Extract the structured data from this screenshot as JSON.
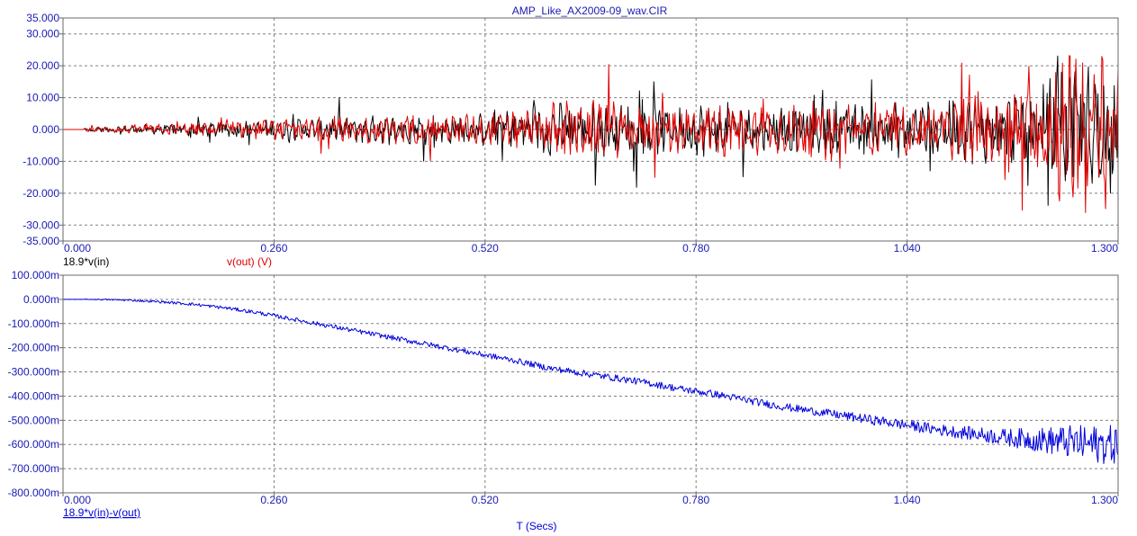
{
  "title": "AMP_Like_AX2009-09_wav.CIR",
  "xlabel": "T (Secs)",
  "colors": {
    "frame": "#6a6a6a",
    "grid": "#808080",
    "text": "#1a1a1a",
    "title": "#1a1ab4",
    "black_trace": "#000000",
    "red_trace": "#e00000",
    "blue_trace": "#0000dc"
  },
  "chart_data": [
    {
      "type": "line",
      "id": "top",
      "xlim": [
        0,
        1.3
      ],
      "ylim": [
        -35,
        35
      ],
      "x_ticks": [
        0,
        0.26,
        0.52,
        0.78,
        1.04,
        1.3
      ],
      "x_tick_labels": [
        "0.000",
        "0.260",
        "0.520",
        "0.780",
        "1.040",
        "1.300"
      ],
      "y_ticks": [
        35,
        30,
        20,
        10,
        0,
        -10,
        -20,
        -30,
        -35
      ],
      "y_tick_labels": [
        "35.000",
        "30.000",
        "20.000",
        "10.000",
        "0.000",
        "-10.000",
        "-20.000",
        "-30.000",
        "-35.000"
      ],
      "grid": true,
      "series": [
        {
          "name": "18.9*v(in)",
          "color": "#000000",
          "x": [
            0,
            0.04,
            0.08,
            0.12,
            0.16,
            0.2,
            0.24,
            0.28,
            0.32,
            0.36,
            0.4,
            0.44,
            0.48,
            0.52,
            0.56,
            0.6,
            0.64,
            0.68,
            0.72,
            0.76,
            0.8,
            0.84,
            0.88,
            0.92,
            0.96,
            1.0,
            1.04,
            1.08,
            1.12,
            1.16,
            1.2,
            1.24,
            1.27,
            1.3
          ],
          "amplitude": [
            0,
            1,
            1.5,
            2,
            2.5,
            3,
            3.5,
            4,
            4.5,
            5,
            5,
            5.5,
            5.5,
            6,
            7,
            10,
            10,
            10,
            9,
            9,
            10,
            9,
            9,
            9.5,
            9.5,
            10,
            10,
            10,
            12,
            12,
            18,
            24,
            26,
            22
          ]
        },
        {
          "name": "v(out)",
          "unit": "(V)",
          "color": "#e00000",
          "x": [
            0,
            0.04,
            0.08,
            0.12,
            0.16,
            0.2,
            0.24,
            0.28,
            0.32,
            0.36,
            0.4,
            0.44,
            0.48,
            0.52,
            0.56,
            0.6,
            0.64,
            0.68,
            0.72,
            0.76,
            0.8,
            0.84,
            0.88,
            0.92,
            0.96,
            1.0,
            1.04,
            1.08,
            1.12,
            1.16,
            1.2,
            1.24,
            1.27,
            1.3
          ],
          "amplitude": [
            0,
            1,
            1.5,
            2,
            2.5,
            3,
            3.5,
            4,
            4.5,
            5,
            5,
            5.5,
            5.5,
            6,
            7,
            10,
            11,
            10,
            9,
            9,
            10,
            9,
            9,
            9.5,
            9.5,
            10,
            11,
            10,
            12,
            13,
            20,
            30,
            31,
            25
          ]
        }
      ]
    },
    {
      "type": "line",
      "id": "bottom",
      "xlim": [
        0,
        1.3
      ],
      "ylim": [
        -800,
        100
      ],
      "y_unit": "m",
      "xlabel": "T (Secs)",
      "x_ticks": [
        0,
        0.26,
        0.52,
        0.78,
        1.04,
        1.3
      ],
      "x_tick_labels": [
        "0.000",
        "0.260",
        "0.520",
        "0.780",
        "1.040",
        "1.300"
      ],
      "y_ticks": [
        100,
        0,
        -100,
        -200,
        -300,
        -400,
        -500,
        -600,
        -700,
        -800
      ],
      "y_tick_labels": [
        "100.000m",
        "0.000m",
        "-100.000m",
        "-200.000m",
        "-300.000m",
        "-400.000m",
        "-500.000m",
        "-600.000m",
        "-700.000m",
        "-800.000m"
      ],
      "grid": true,
      "series": [
        {
          "name": "18.9*v(in)-v(out)",
          "color": "#0000dc",
          "x": [
            0,
            0.04,
            0.08,
            0.12,
            0.16,
            0.2,
            0.24,
            0.28,
            0.32,
            0.36,
            0.4,
            0.44,
            0.48,
            0.52,
            0.56,
            0.6,
            0.64,
            0.68,
            0.72,
            0.76,
            0.8,
            0.84,
            0.88,
            0.92,
            0.96,
            1.0,
            1.04,
            1.08,
            1.12,
            1.16,
            1.2,
            1.24,
            1.27,
            1.3
          ],
          "y": [
            0,
            0,
            -3,
            -10,
            -20,
            -35,
            -55,
            -80,
            -105,
            -130,
            -155,
            -180,
            -205,
            -230,
            -255,
            -285,
            -305,
            -325,
            -345,
            -370,
            -390,
            -415,
            -440,
            -460,
            -480,
            -500,
            -520,
            -540,
            -555,
            -570,
            -580,
            -590,
            -600,
            -600
          ],
          "noise": [
            0,
            2,
            4,
            5,
            6,
            7,
            8,
            8,
            9,
            10,
            10,
            11,
            11,
            12,
            12,
            13,
            14,
            14,
            14,
            15,
            15,
            15,
            16,
            16,
            18,
            20,
            22,
            24,
            28,
            35,
            50,
            70,
            80,
            80
          ]
        }
      ]
    }
  ]
}
